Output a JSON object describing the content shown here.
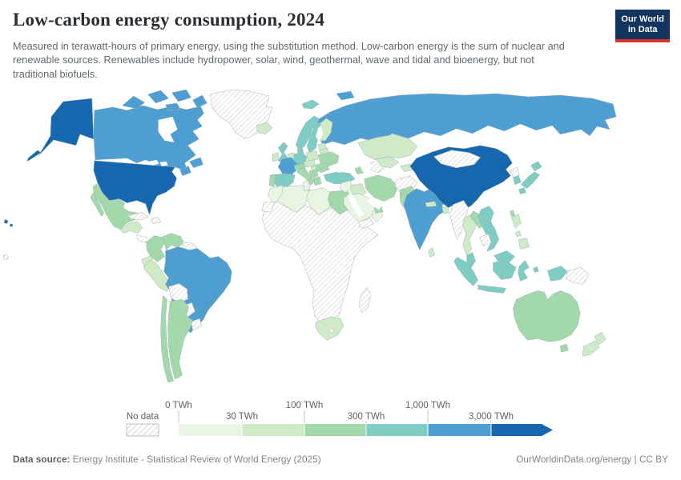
{
  "header": {
    "title": "Low-carbon energy consumption, 2024",
    "subtitle": "Measured in terawatt-hours of primary energy, using the substitution method. Low-carbon energy is the sum of nuclear and renewable sources. Renewables include hydropower, solar, wind, geothermal, wave and tidal and bioenergy, but not traditional biofuels.",
    "logo": {
      "line1": "Our World",
      "line2": "in Data",
      "bg_color": "#12355f",
      "accent_color": "#d5332b"
    }
  },
  "legend": {
    "no_data_label": "No data",
    "ticks": [
      "0 TWh",
      "30 TWh",
      "100 TWh",
      "300 TWh",
      "1,000 TWh",
      "3,000 TWh"
    ]
  },
  "footer": {
    "source_label": "Data source:",
    "source_text": "Energy Institute - Statistical Review of World Energy (2025)",
    "site_text": "OurWorldinData.org/energy",
    "separator": "|",
    "license_text": "CC BY"
  },
  "chart_data": {
    "type": "heatmap",
    "subtype": "choropleth_world_map",
    "title": "Low-carbon energy consumption, 2024",
    "unit": "TWh",
    "scale": "binned, roughly logarithmic",
    "legend_position": "bottom",
    "tick_labels": [
      "0 TWh",
      "30 TWh",
      "100 TWh",
      "300 TWh",
      "1,000 TWh",
      "3,000 TWh"
    ],
    "bins": [
      {
        "label": "0–30 TWh",
        "color": "#e9f5e3"
      },
      {
        "label": "30–100 TWh",
        "color": "#cfeac6"
      },
      {
        "label": "100–300 TWh",
        "color": "#a3d8aa"
      },
      {
        "label": "300–1,000 TWh",
        "color": "#7fccc4"
      },
      {
        "label": "1,000–3,000 TWh",
        "color": "#4e9ed2"
      },
      {
        "label": "3,000+ TWh",
        "color": "#1767ae"
      }
    ],
    "no_data": {
      "label": "No data",
      "pattern": "diagonal-hatch"
    },
    "countries": {
      "united-states": 5,
      "china": 5,
      "canada": 4,
      "russia": 4,
      "brazil": 4,
      "india": 4,
      "france": 4,
      "norway": 3,
      "sweden": 3,
      "denmark": 3,
      "united-kingdom": 3,
      "germany": 3,
      "spain": 3,
      "turkey": 3,
      "japan": 3,
      "south-korea": 3,
      "vietnam": 3,
      "malaysia": 3,
      "indonesia": 3,
      "mexico": 2,
      "colombia": 2,
      "venezuela": 2,
      "argentina": 2,
      "chile": 2,
      "portugal": 2,
      "italy": 2,
      "switzerland-austria": 2,
      "ukraine": 2,
      "romania": 2,
      "balkans": 2,
      "greece": 2,
      "caucasus": 2,
      "egypt": 2,
      "iran": 2,
      "pakistan": 2,
      "united-arab-emirates": 2,
      "laos": 2,
      "taiwan": 2,
      "australia": 2,
      "iceland": 1,
      "ireland": 1,
      "finland": 1,
      "baltics": 1,
      "belarus": 1,
      "poland": 1,
      "czech-slovakia": 1,
      "hungary": 1,
      "netherlands-belgium": 1,
      "kazakhstan": 1,
      "uzbekistan": 1,
      "kyrgyzstan-tajikistan": 1,
      "iraq": 1,
      "thailand": 1,
      "philippines": 1,
      "sri-lanka": 1,
      "bangladesh": 1,
      "nepal": 1,
      "ecuador": 1,
      "peru": 1,
      "south-africa": 1,
      "central-america": 1,
      "new-zealand": 1,
      "morocco": 0,
      "algeria": 0,
      "tunisia": 0,
      "libya": 0,
      "saudi-arabia": 0,
      "levant": 0,
      "oman": 0,
      "greenland": null,
      "mongolia": null,
      "myanmar": null,
      "cambodia": null,
      "north-korea": null,
      "papua-new-guinea": null,
      "bolivia": null,
      "paraguay": null,
      "uruguay": null,
      "guyana-suriname": null,
      "cuba": null,
      "hispaniola": null,
      "sub-saharan-africa": null,
      "madagascar": null,
      "western-sahara": null,
      "afghanistan": null,
      "turkmenistan": null,
      "yemen": null,
      "costa-rica-panama": null,
      "lesotho": null,
      "pacific-islands": null
    }
  },
  "map_style": {
    "ocean_color": "#ffffff",
    "border_color": "#9db1ba",
    "no_data_border": "#bdbdbd",
    "hatch_line_color": "#d2d2d2"
  }
}
